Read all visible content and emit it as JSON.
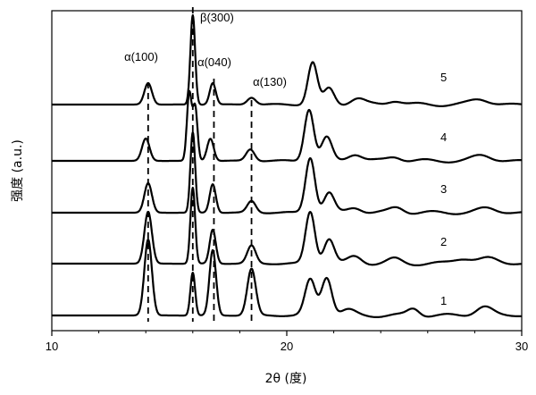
{
  "chart_data": {
    "type": "line",
    "xlabel": "2θ (度)",
    "ylabel": "强度 (a.u.)",
    "xlim": [
      10,
      30
    ],
    "xticks": [
      10,
      20,
      30
    ],
    "grid": false,
    "legend": "none",
    "annotations": [
      {
        "label": "α(100)",
        "x": 14.1
      },
      {
        "label": "β(300)",
        "x": 16.0
      },
      {
        "label": "α(040)",
        "x": 16.9
      },
      {
        "label": "α(130)",
        "x": 18.5
      }
    ],
    "series": [
      {
        "name": "1"
      },
      {
        "name": "2"
      },
      {
        "name": "3"
      },
      {
        "name": "4"
      },
      {
        "name": "5"
      }
    ]
  }
}
